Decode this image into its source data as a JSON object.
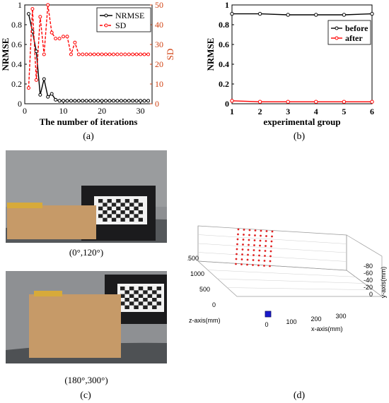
{
  "figure": {
    "captions": {
      "a": "(a)",
      "b": "(b)",
      "c": "(c)",
      "d": "(d)"
    },
    "photo_labels": [
      "(0°,120°)",
      "(180°,300°)"
    ]
  },
  "chart_data": [
    {
      "id": "a",
      "type": "line",
      "xlabel": "The number of iterations",
      "ylabel": "NRMSE",
      "ylabel_right": "SD",
      "xlim": [
        0,
        33
      ],
      "ylim": [
        0,
        1
      ],
      "ylim_right": [
        0,
        50
      ],
      "xticks": [
        0,
        10,
        20,
        30
      ],
      "yticks": [
        0,
        0.2,
        0.4,
        0.6,
        0.8,
        1
      ],
      "yticks_right": [
        0,
        10,
        20,
        30,
        40,
        50
      ],
      "legend": "top-right",
      "series": [
        {
          "name": "NRMSE",
          "axis": "left",
          "color": "#000000",
          "style": "solid",
          "x": [
            1,
            2,
            3,
            4,
            5,
            6,
            7,
            8,
            9,
            10,
            11,
            12,
            13,
            14,
            15,
            16,
            17,
            18,
            19,
            20,
            21,
            22,
            23,
            24,
            25,
            26,
            27,
            28,
            29,
            30,
            31,
            32
          ],
          "values": [
            0.91,
            0.73,
            0.53,
            0.09,
            0.25,
            0.07,
            0.1,
            0.04,
            0.03,
            0.03,
            0.03,
            0.03,
            0.03,
            0.03,
            0.03,
            0.03,
            0.03,
            0.03,
            0.03,
            0.03,
            0.03,
            0.03,
            0.03,
            0.03,
            0.03,
            0.03,
            0.03,
            0.03,
            0.03,
            0.03,
            0.03,
            0.03
          ]
        },
        {
          "name": "SD",
          "axis": "right",
          "color": "#ff0000",
          "style": "dashed",
          "x": [
            1,
            2,
            3,
            4,
            5,
            6,
            7,
            8,
            9,
            10,
            11,
            12,
            13,
            14,
            15,
            16,
            17,
            18,
            19,
            20,
            21,
            22,
            23,
            24,
            25,
            26,
            27,
            28,
            29,
            30,
            31,
            32
          ],
          "values": [
            8,
            48,
            12,
            44,
            25,
            50,
            36,
            33,
            33,
            34,
            34,
            25,
            31,
            25,
            25,
            25,
            25,
            25,
            25,
            25,
            25,
            25,
            25,
            25,
            25,
            25,
            25,
            25,
            25,
            25,
            25,
            25
          ]
        }
      ]
    },
    {
      "id": "b",
      "type": "line",
      "xlabel": "experimental group",
      "ylabel": "NRMSE",
      "xlim": [
        1,
        6
      ],
      "ylim": [
        0,
        1
      ],
      "xticks": [
        1,
        2,
        3,
        4,
        5,
        6
      ],
      "yticks": [
        0,
        0.2,
        0.4,
        0.6,
        0.8,
        1
      ],
      "legend": "right",
      "series": [
        {
          "name": "before",
          "color": "#000000",
          "x": [
            1,
            2,
            3,
            4,
            5,
            6
          ],
          "values": [
            0.91,
            0.91,
            0.9,
            0.9,
            0.9,
            0.91
          ]
        },
        {
          "name": "after",
          "color": "#ff0000",
          "x": [
            1,
            2,
            3,
            4,
            5,
            6
          ],
          "values": [
            0.03,
            0.02,
            0.02,
            0.02,
            0.02,
            0.02
          ]
        }
      ]
    },
    {
      "id": "d",
      "type": "scatter",
      "xlabel": "x-axis(mm)",
      "ylabel": "y-axis(mm)",
      "zlabel": "z-axis(mm)",
      "xticks": [
        0,
        100,
        200,
        300
      ],
      "yticks": [
        -80,
        -60,
        -40,
        -20,
        0
      ],
      "zticks": [
        0,
        500,
        1000,
        1500
      ],
      "point_color": "#e02020",
      "camera_color": "#1a1acc"
    }
  ]
}
